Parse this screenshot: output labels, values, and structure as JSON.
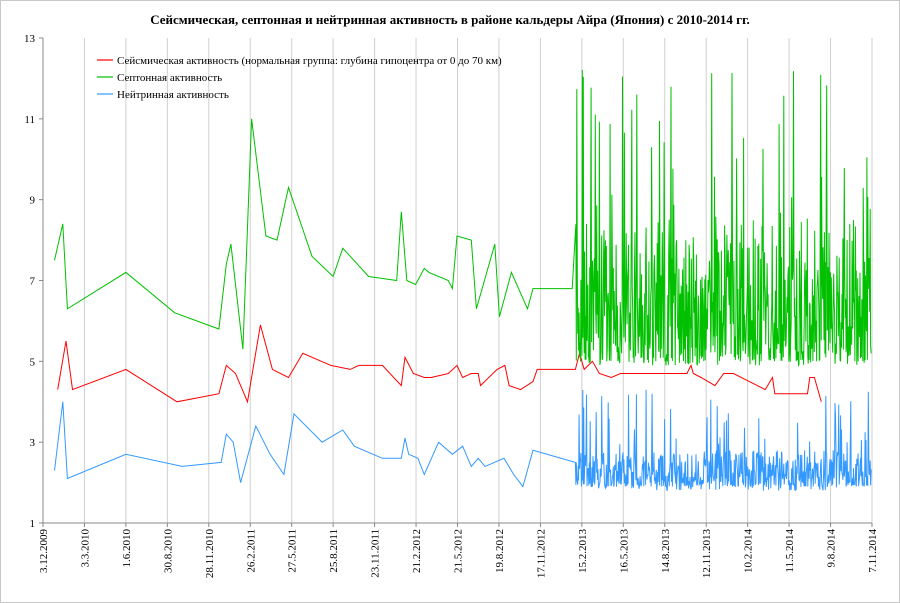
{
  "chart_data": {
    "type": "line",
    "title": "Сейсмическая, септонная и нейтринная активность в районе кальдеры Айра (Япония) с 2010-2014 гг.",
    "ylim": [
      1,
      13
    ],
    "y_ticks": [
      1,
      3,
      5,
      7,
      9,
      11,
      13
    ],
    "xlim": [
      "2009-12-03",
      "2014-11-07"
    ],
    "x_tick_labels": [
      "3.12.2009",
      "3.3.2010",
      "1.6.2010",
      "30.8.2010",
      "28.11.2010",
      "26.2.2011",
      "27.5.2011",
      "25.8.2011",
      "23.11.2011",
      "21.2.2012",
      "21.5.2012",
      "19.8.2012",
      "17.11.2012",
      "15.2.2013",
      "16.5.2013",
      "14.8.2013",
      "12.11.2013",
      "10.2.2014",
      "11.5.2014",
      "9.8.2014",
      "7.11.2014"
    ],
    "grid": "vertical",
    "legend_position": "top-left",
    "series": [
      {
        "name": "Сейсмическая активность (нормальная группа: глубина гипоцентра от 0 до 70 км)",
        "color": "#ff0000",
        "points": [
          [
            "2010-01-04",
            4.3
          ],
          [
            "2010-01-22",
            5.5
          ],
          [
            "2010-02-05",
            4.3
          ],
          [
            "2010-06-01",
            4.8
          ],
          [
            "2010-09-20",
            4.0
          ],
          [
            "2010-12-20",
            4.2
          ],
          [
            "2011-01-05",
            4.9
          ],
          [
            "2011-01-25",
            4.7
          ],
          [
            "2011-02-20",
            4.0
          ],
          [
            "2011-03-20",
            5.9
          ],
          [
            "2011-04-15",
            4.8
          ],
          [
            "2011-05-20",
            4.6
          ],
          [
            "2011-06-20",
            5.2
          ],
          [
            "2011-08-20",
            4.9
          ],
          [
            "2011-10-01",
            4.8
          ],
          [
            "2011-10-20",
            4.9
          ],
          [
            "2011-12-10",
            4.9
          ],
          [
            "2012-01-20",
            4.4
          ],
          [
            "2012-01-28",
            5.1
          ],
          [
            "2012-02-15",
            4.7
          ],
          [
            "2012-03-10",
            4.6
          ],
          [
            "2012-03-25",
            4.6
          ],
          [
            "2012-05-01",
            4.7
          ],
          [
            "2012-05-20",
            4.9
          ],
          [
            "2012-06-01",
            4.6
          ],
          [
            "2012-06-20",
            4.7
          ],
          [
            "2012-07-05",
            4.7
          ],
          [
            "2012-07-10",
            4.4
          ],
          [
            "2012-08-15",
            4.8
          ],
          [
            "2012-09-01",
            4.9
          ],
          [
            "2012-09-10",
            4.4
          ],
          [
            "2012-10-05",
            4.3
          ],
          [
            "2012-11-01",
            4.5
          ],
          [
            "2012-11-10",
            4.8
          ],
          [
            "2013-01-20",
            4.8
          ],
          [
            "2013-02-01",
            4.8
          ],
          [
            "2013-02-10",
            5.2
          ],
          [
            "2013-02-20",
            4.8
          ],
          [
            "2013-03-10",
            5.0
          ],
          [
            "2013-03-25",
            4.7
          ],
          [
            "2013-04-20",
            4.6
          ],
          [
            "2013-05-10",
            4.7
          ],
          [
            "2013-08-01",
            4.7
          ],
          [
            "2013-09-20",
            4.7
          ],
          [
            "2013-10-01",
            4.7
          ],
          [
            "2013-10-10",
            4.9
          ],
          [
            "2013-10-15",
            4.7
          ],
          [
            "2013-11-01",
            4.6
          ],
          [
            "2013-12-01",
            4.4
          ],
          [
            "2013-12-20",
            4.7
          ],
          [
            "2014-01-10",
            4.7
          ],
          [
            "2014-03-20",
            4.3
          ],
          [
            "2014-04-05",
            4.6
          ],
          [
            "2014-04-10",
            4.2
          ],
          [
            "2014-06-20",
            4.2
          ],
          [
            "2014-06-25",
            4.6
          ],
          [
            "2014-07-05",
            4.6
          ],
          [
            "2014-07-20",
            4.0
          ]
        ]
      },
      {
        "name": "Септонная активность",
        "color": "#00c000",
        "points": [
          [
            "2009-12-28",
            7.5
          ],
          [
            "2010-01-15",
            8.4
          ],
          [
            "2010-01-25",
            6.3
          ],
          [
            "2010-06-01",
            7.2
          ],
          [
            "2010-09-15",
            6.2
          ],
          [
            "2010-12-20",
            5.8
          ],
          [
            "2011-01-05",
            7.4
          ],
          [
            "2011-01-15",
            7.9
          ],
          [
            "2011-02-10",
            5.3
          ],
          [
            "2011-03-01",
            11.0
          ],
          [
            "2011-04-01",
            8.1
          ],
          [
            "2011-04-25",
            8.0
          ],
          [
            "2011-05-20",
            9.3
          ],
          [
            "2011-07-10",
            7.6
          ],
          [
            "2011-08-25",
            7.1
          ],
          [
            "2011-09-15",
            7.8
          ],
          [
            "2011-10-01",
            7.6
          ],
          [
            "2011-11-10",
            7.1
          ],
          [
            "2012-01-10",
            7.0
          ],
          [
            "2012-01-20",
            8.7
          ],
          [
            "2012-02-01",
            7.0
          ],
          [
            "2012-02-20",
            6.9
          ],
          [
            "2012-03-10",
            7.3
          ],
          [
            "2012-03-20",
            7.2
          ],
          [
            "2012-05-01",
            7.0
          ],
          [
            "2012-05-10",
            6.8
          ],
          [
            "2012-05-20",
            8.1
          ],
          [
            "2012-06-20",
            8.0
          ],
          [
            "2012-07-01",
            6.3
          ],
          [
            "2012-08-10",
            7.9
          ],
          [
            "2012-08-20",
            6.1
          ],
          [
            "2012-09-15",
            7.2
          ],
          [
            "2012-10-20",
            6.3
          ],
          [
            "2012-11-01",
            6.8
          ],
          [
            "2012-12-01",
            6.8
          ],
          [
            "2013-01-25",
            6.8
          ],
          [
            "2013-02-01",
            8.2
          ]
        ],
        "dense_segment": {
          "x_start": "2013-02-01",
          "x_end": "2014-11-05",
          "min": 4.9,
          "max": 12.3,
          "typical_range": [
            5.0,
            8.5
          ]
        }
      },
      {
        "name": "Нейтринная активность",
        "color": "#3399ff",
        "points": [
          [
            "2009-12-28",
            2.3
          ],
          [
            "2010-01-15",
            4.0
          ],
          [
            "2010-01-25",
            2.1
          ],
          [
            "2010-06-01",
            2.7
          ],
          [
            "2010-10-01",
            2.4
          ],
          [
            "2010-12-25",
            2.5
          ],
          [
            "2011-01-05",
            3.2
          ],
          [
            "2011-01-20",
            3.0
          ],
          [
            "2011-02-05",
            2.0
          ],
          [
            "2011-03-10",
            3.4
          ],
          [
            "2011-04-10",
            2.7
          ],
          [
            "2011-05-10",
            2.2
          ],
          [
            "2011-06-01",
            3.7
          ],
          [
            "2011-08-01",
            3.0
          ],
          [
            "2011-09-15",
            3.3
          ],
          [
            "2011-10-10",
            2.9
          ],
          [
            "2011-12-10",
            2.6
          ],
          [
            "2012-01-20",
            2.6
          ],
          [
            "2012-01-28",
            3.1
          ],
          [
            "2012-02-05",
            2.7
          ],
          [
            "2012-02-25",
            2.6
          ],
          [
            "2012-03-10",
            2.2
          ],
          [
            "2012-04-10",
            3.0
          ],
          [
            "2012-05-10",
            2.7
          ],
          [
            "2012-06-01",
            2.9
          ],
          [
            "2012-06-20",
            2.4
          ],
          [
            "2012-07-05",
            2.6
          ],
          [
            "2012-07-20",
            2.4
          ],
          [
            "2012-08-30",
            2.6
          ],
          [
            "2012-09-20",
            2.2
          ],
          [
            "2012-10-10",
            1.9
          ],
          [
            "2012-11-01",
            2.8
          ],
          [
            "2013-02-01",
            2.5
          ]
        ],
        "dense_segment": {
          "x_start": "2013-02-01",
          "x_end": "2014-11-05",
          "min": 1.8,
          "max": 4.3,
          "typical_range": [
            1.9,
            2.8
          ]
        }
      }
    ]
  }
}
